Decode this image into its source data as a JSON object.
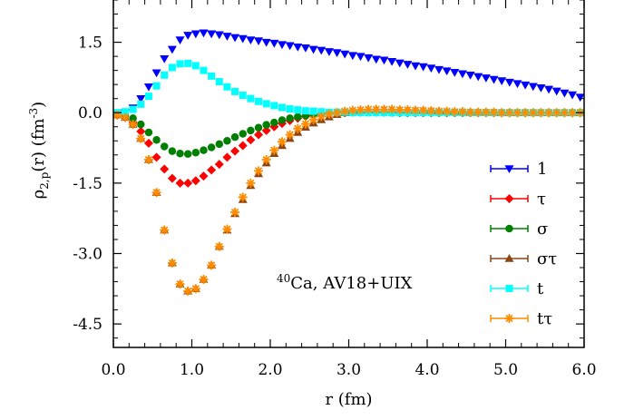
{
  "chart_data": {
    "type": "scatter",
    "xlabel": "r (fm)",
    "ylabel": {
      "main": "ρ",
      "sub": "2,p",
      "args": "(r) (fm",
      "sup": "-3",
      "close": ")"
    },
    "annotation": {
      "sup": "40",
      "text": "Ca, AV18+UIX"
    },
    "xlim": [
      0,
      6
    ],
    "ylim": [
      -5.0,
      2.4
    ],
    "xticks": [
      {
        "value": 0,
        "label": "0.0"
      },
      {
        "value": 1,
        "label": "1.0"
      },
      {
        "value": 2,
        "label": "2.0"
      },
      {
        "value": 3,
        "label": "3.0"
      },
      {
        "value": 4,
        "label": "4.0"
      },
      {
        "value": 5,
        "label": "5.0"
      },
      {
        "value": 6,
        "label": "6.0"
      }
    ],
    "yticks": [
      {
        "value": 1.5,
        "label": "1.5"
      },
      {
        "value": 0,
        "label": "0.0"
      },
      {
        "value": -1.5,
        "label": "-1.5"
      },
      {
        "value": -3,
        "label": "-3.0"
      },
      {
        "value": -4.5,
        "label": "-4.5"
      }
    ],
    "legend_position": "bottom-right",
    "grid": false,
    "series": [
      {
        "name": "1",
        "color": "#0000ff",
        "marker": "triangle-down",
        "x": [
          0.05,
          0.15,
          0.25,
          0.35,
          0.45,
          0.55,
          0.65,
          0.75,
          0.85,
          0.95,
          1.05,
          1.15,
          1.25,
          1.35,
          1.45,
          1.55,
          1.65,
          1.75,
          1.85,
          1.95,
          2.05,
          2.15,
          2.25,
          2.35,
          2.45,
          2.55,
          2.65,
          2.75,
          2.85,
          2.95,
          3.05,
          3.15,
          3.25,
          3.35,
          3.45,
          3.55,
          3.65,
          3.75,
          3.85,
          3.95,
          4.05,
          4.15,
          4.25,
          4.35,
          4.45,
          4.55,
          4.65,
          4.75,
          4.85,
          4.95,
          5.05,
          5.15,
          5.25,
          5.35,
          5.45,
          5.55,
          5.65,
          5.75,
          5.85,
          5.95
        ],
        "y": [
          -0.05,
          0.0,
          0.1,
          0.3,
          0.55,
          0.85,
          1.15,
          1.35,
          1.55,
          1.65,
          1.68,
          1.7,
          1.68,
          1.66,
          1.63,
          1.6,
          1.58,
          1.55,
          1.53,
          1.5,
          1.48,
          1.45,
          1.43,
          1.4,
          1.38,
          1.35,
          1.33,
          1.3,
          1.28,
          1.25,
          1.22,
          1.2,
          1.17,
          1.14,
          1.12,
          1.09,
          1.06,
          1.03,
          1.0,
          0.98,
          0.95,
          0.92,
          0.89,
          0.86,
          0.83,
          0.8,
          0.77,
          0.74,
          0.71,
          0.68,
          0.65,
          0.62,
          0.59,
          0.56,
          0.53,
          0.5,
          0.46,
          0.42,
          0.38,
          0.33
        ]
      },
      {
        "name": "τ",
        "color": "#ff0000",
        "marker": "diamond",
        "x": [
          0.05,
          0.15,
          0.25,
          0.35,
          0.45,
          0.55,
          0.65,
          0.75,
          0.85,
          0.95,
          1.05,
          1.15,
          1.25,
          1.35,
          1.45,
          1.55,
          1.65,
          1.75,
          1.85,
          1.95,
          2.05,
          2.15,
          2.25,
          2.35,
          2.45,
          2.55,
          2.65,
          2.75,
          2.85,
          2.95,
          3.05,
          3.15,
          3.25,
          3.35,
          3.45,
          3.55,
          3.65,
          3.75,
          3.85,
          3.95,
          4.05,
          4.15,
          4.25,
          4.35,
          4.45,
          4.55,
          4.65,
          4.75,
          4.85,
          4.95,
          5.05,
          5.15,
          5.25,
          5.35,
          5.45,
          5.55,
          5.65,
          5.75,
          5.85,
          5.95
        ],
        "y": [
          -0.05,
          -0.1,
          -0.2,
          -0.4,
          -0.65,
          -0.95,
          -1.2,
          -1.4,
          -1.5,
          -1.5,
          -1.45,
          -1.35,
          -1.22,
          -1.1,
          -0.95,
          -0.82,
          -0.7,
          -0.58,
          -0.47,
          -0.38,
          -0.3,
          -0.23,
          -0.17,
          -0.12,
          -0.08,
          -0.05,
          -0.03,
          -0.01,
          0.0,
          0.0,
          0.01,
          0.01,
          0.01,
          0.01,
          0.01,
          0.01,
          0.0,
          0.0,
          0.0,
          0.0,
          0.0,
          0.0,
          0.0,
          0.0,
          0.0,
          0.0,
          0.0,
          0.0,
          0.0,
          0.0,
          0.0,
          0.0,
          0.0,
          0.0,
          0.0,
          0.0,
          0.0,
          0.0,
          0.0,
          0.0
        ]
      },
      {
        "name": "σ",
        "color": "#008000",
        "marker": "circle",
        "x": [
          0.05,
          0.15,
          0.25,
          0.35,
          0.45,
          0.55,
          0.65,
          0.75,
          0.85,
          0.95,
          1.05,
          1.15,
          1.25,
          1.35,
          1.45,
          1.55,
          1.65,
          1.75,
          1.85,
          1.95,
          2.05,
          2.15,
          2.25,
          2.35,
          2.45,
          2.55,
          2.65,
          2.75,
          2.85,
          2.95,
          3.05,
          3.15,
          3.25,
          3.35,
          3.45,
          3.55,
          3.65,
          3.75,
          3.85,
          3.95,
          4.05,
          4.15,
          4.25,
          4.35,
          4.45,
          4.55,
          4.65,
          4.75,
          4.85,
          4.95,
          5.05,
          5.15,
          5.25,
          5.35,
          5.45,
          5.55,
          5.65,
          5.75,
          5.85,
          5.95
        ],
        "y": [
          -0.03,
          -0.05,
          -0.12,
          -0.25,
          -0.42,
          -0.58,
          -0.72,
          -0.82,
          -0.87,
          -0.88,
          -0.85,
          -0.8,
          -0.74,
          -0.67,
          -0.6,
          -0.52,
          -0.45,
          -0.38,
          -0.32,
          -0.26,
          -0.21,
          -0.16,
          -0.12,
          -0.09,
          -0.06,
          -0.04,
          -0.02,
          -0.01,
          0.0,
          0.0,
          0.01,
          0.01,
          0.01,
          0.01,
          0.01,
          0.0,
          0.0,
          0.0,
          0.0,
          0.0,
          0.0,
          0.0,
          0.0,
          0.0,
          0.0,
          0.0,
          0.0,
          0.0,
          0.0,
          0.0,
          0.0,
          0.0,
          0.0,
          0.0,
          0.0,
          0.0,
          0.0,
          0.0,
          0.0,
          0.0
        ]
      },
      {
        "name": "στ",
        "color": "#8b4513",
        "marker": "triangle-up",
        "x": [
          0.05,
          0.15,
          0.25,
          0.35,
          0.45,
          0.55,
          0.65,
          0.75,
          0.85,
          0.95,
          1.05,
          1.15,
          1.25,
          1.35,
          1.45,
          1.55,
          1.65,
          1.75,
          1.85,
          1.95,
          2.05,
          2.15,
          2.25,
          2.35,
          2.45,
          2.55,
          2.65,
          2.75,
          2.85,
          2.95,
          3.05,
          3.15,
          3.25,
          3.35,
          3.45,
          3.55,
          3.65,
          3.75,
          3.85,
          3.95,
          4.05,
          4.15,
          4.25,
          4.35,
          4.45,
          4.55,
          4.65,
          4.75,
          4.85,
          4.95,
          5.05,
          5.15,
          5.25,
          5.35,
          5.45,
          5.55,
          5.65,
          5.75,
          5.85,
          5.95
        ],
        "y": [
          -0.05,
          -0.1,
          -0.25,
          -0.55,
          -1.0,
          -1.7,
          -2.5,
          -3.2,
          -3.65,
          -3.8,
          -3.75,
          -3.55,
          -3.25,
          -2.85,
          -2.5,
          -2.15,
          -1.85,
          -1.55,
          -1.3,
          -1.07,
          -0.87,
          -0.7,
          -0.55,
          -0.42,
          -0.31,
          -0.22,
          -0.15,
          -0.09,
          -0.04,
          0.0,
          0.03,
          0.05,
          0.06,
          0.07,
          0.07,
          0.07,
          0.06,
          0.06,
          0.05,
          0.05,
          0.04,
          0.03,
          0.03,
          0.02,
          0.02,
          0.01,
          0.01,
          0.01,
          0.01,
          0.0,
          0.0,
          0.0,
          0.0,
          0.0,
          0.0,
          0.0,
          0.0,
          0.0,
          0.0,
          0.0
        ]
      },
      {
        "name": "t",
        "color": "#00ffff",
        "marker": "square",
        "x": [
          0.05,
          0.15,
          0.25,
          0.35,
          0.45,
          0.55,
          0.65,
          0.75,
          0.85,
          0.95,
          1.05,
          1.15,
          1.25,
          1.35,
          1.45,
          1.55,
          1.65,
          1.75,
          1.85,
          1.95,
          2.05,
          2.15,
          2.25,
          2.35,
          2.45,
          2.55,
          2.65,
          2.75,
          2.85,
          2.95,
          3.05,
          3.15,
          3.25,
          3.35,
          3.45,
          3.55,
          3.65,
          3.75,
          3.85,
          3.95,
          4.05,
          4.15,
          4.25,
          4.35,
          4.45,
          4.55,
          4.65,
          4.75,
          4.85,
          4.95,
          5.05,
          5.15,
          5.25,
          5.35,
          5.45,
          5.55,
          5.65,
          5.75,
          5.85,
          5.95
        ],
        "y": [
          0.0,
          0.02,
          0.07,
          0.18,
          0.35,
          0.57,
          0.8,
          0.96,
          1.04,
          1.05,
          1.0,
          0.9,
          0.78,
          0.66,
          0.55,
          0.45,
          0.37,
          0.3,
          0.24,
          0.19,
          0.15,
          0.11,
          0.08,
          0.06,
          0.04,
          0.03,
          0.02,
          0.01,
          0.01,
          0.01,
          0.0,
          0.0,
          0.0,
          0.0,
          0.0,
          0.0,
          0.0,
          0.0,
          0.0,
          0.0,
          0.0,
          0.0,
          0.0,
          0.0,
          0.0,
          0.0,
          0.0,
          0.0,
          0.0,
          0.0,
          0.0,
          0.0,
          0.0,
          0.0,
          0.0,
          0.0,
          0.0,
          0.0,
          0.0,
          0.0
        ]
      },
      {
        "name": "tτ",
        "color": "#ff8c00",
        "marker": "asterisk",
        "x": [
          0.05,
          0.15,
          0.25,
          0.35,
          0.45,
          0.55,
          0.65,
          0.75,
          0.85,
          0.95,
          1.05,
          1.15,
          1.25,
          1.35,
          1.45,
          1.55,
          1.65,
          1.75,
          1.85,
          1.95,
          2.05,
          2.15,
          2.25,
          2.35,
          2.45,
          2.55,
          2.65,
          2.75,
          2.85,
          2.95,
          3.05,
          3.15,
          3.25,
          3.35,
          3.45,
          3.55,
          3.65,
          3.75,
          3.85,
          3.95,
          4.05,
          4.15,
          4.25,
          4.35,
          4.45,
          4.55,
          4.65,
          4.75,
          4.85,
          4.95,
          5.05,
          5.15,
          5.25,
          5.35,
          5.45,
          5.55,
          5.65,
          5.75,
          5.85,
          5.95
        ],
        "y": [
          -0.05,
          -0.1,
          -0.25,
          -0.55,
          -1.0,
          -1.7,
          -2.5,
          -3.2,
          -3.65,
          -3.8,
          -3.75,
          -3.55,
          -3.25,
          -2.85,
          -2.48,
          -2.12,
          -1.8,
          -1.5,
          -1.24,
          -1.0,
          -0.8,
          -0.62,
          -0.47,
          -0.34,
          -0.24,
          -0.15,
          -0.08,
          -0.03,
          0.0,
          0.03,
          0.05,
          0.06,
          0.07,
          0.07,
          0.07,
          0.07,
          0.06,
          0.06,
          0.05,
          0.05,
          0.04,
          0.03,
          0.03,
          0.02,
          0.02,
          0.01,
          0.01,
          0.01,
          0.01,
          0.0,
          0.0,
          0.0,
          0.0,
          0.0,
          0.0,
          0.0,
          0.0,
          0.0,
          0.0,
          0.0
        ]
      }
    ]
  }
}
